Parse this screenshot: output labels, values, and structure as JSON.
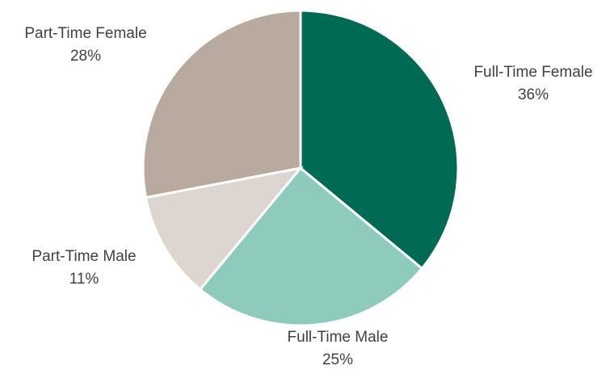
{
  "chart_data": {
    "type": "pie",
    "categories": [
      "Full-Time Female",
      "Full-Time Male",
      "Part-Time Male",
      "Part-Time Female"
    ],
    "values": [
      36,
      25,
      11,
      28
    ],
    "value_labels": [
      "36%",
      "25%",
      "11%",
      "28%"
    ],
    "colors": [
      "#006a55",
      "#8ecbbd",
      "#ddd5d0",
      "#b8aa9e"
    ]
  }
}
